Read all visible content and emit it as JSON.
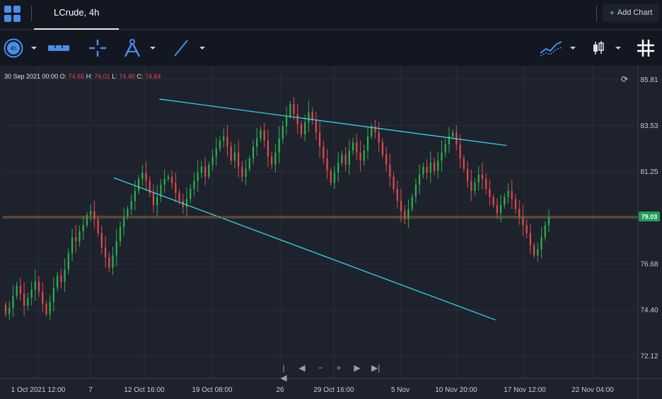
{
  "topbar": {
    "tab_label": "LCrude, 4h",
    "add_chart_label": "Add Chart",
    "add_chart_plus": "+"
  },
  "toolbar": {
    "timeframe_badge": "4h",
    "icons": [
      "timeframe-icon",
      "ruler-icon",
      "crosshair-icon",
      "compass-icon",
      "trendline-icon",
      "indicators-icon",
      "candle-type-icon",
      "grid-icon"
    ]
  },
  "ohlc_header": {
    "date": "30 Sep 2021 00:00",
    "o_label": "O:",
    "o_value": "74.65",
    "h_label": "H:",
    "h_value": "76.01",
    "l_label": "L:",
    "l_value": "74.40",
    "c_label": "C:",
    "c_value": "74.64"
  },
  "nav_controls": [
    "|◀",
    "◀",
    "−",
    "+",
    "▶",
    "▶|"
  ],
  "colors": {
    "up": "#2bb24c",
    "down": "#e34b4b",
    "trendline": "#33d4e6",
    "price_line": "#d44a3a",
    "price_badge": "#1f9d55",
    "background": "#1e222d"
  },
  "chart_data": {
    "type": "candlestick",
    "symbol": "LCrude",
    "interval": "4h",
    "y_ticks": [
      "85.81",
      "83.53",
      "81.25",
      "76.68",
      "74.40",
      "72.12"
    ],
    "x_ticks": [
      "1 Oct 2021 12:00",
      "7",
      "12 Oct 16:00",
      "19 Oct 08:00",
      "26",
      "29 Oct 16:00",
      "5 Nov",
      "10 Nov 20:00",
      "17 Nov 12:00",
      "22 Nov 04:00"
    ],
    "ylim": [
      71.0,
      86.5
    ],
    "current_price": "79.03",
    "grid": true,
    "trendlines": [
      {
        "name": "upper",
        "start": [
          28.3,
          84.85
        ],
        "end": [
          92.2,
          82.55
        ]
      },
      {
        "name": "lower",
        "start": [
          19.9,
          80.95
        ],
        "end": [
          90.2,
          73.9
        ]
      }
    ],
    "closes": [
      74.2,
      74.5,
      75.1,
      75.6,
      75.2,
      74.6,
      75.0,
      75.4,
      75.8,
      75.3,
      74.7,
      74.2,
      74.8,
      75.5,
      76.1,
      75.8,
      76.4,
      77.2,
      78.0,
      77.8,
      78.3,
      78.6,
      79.1,
      79.3,
      78.9,
      78.2,
      77.5,
      77.0,
      76.5,
      77.1,
      77.8,
      78.5,
      79.0,
      79.4,
      79.8,
      80.3,
      80.9,
      81.2,
      80.8,
      80.2,
      79.6,
      80.0,
      80.6,
      80.9,
      81.0,
      80.7,
      80.2,
      79.8,
      79.5,
      79.9,
      80.4,
      80.8,
      81.2,
      81.5,
      81.0,
      81.6,
      82.0,
      82.4,
      82.8,
      83.0,
      82.5,
      81.8,
      82.2,
      81.5,
      81.0,
      81.4,
      81.9,
      82.5,
      82.9,
      83.3,
      82.8,
      82.0,
      81.6,
      82.2,
      82.9,
      83.5,
      84.0,
      84.6,
      84.1,
      83.6,
      83.1,
      83.7,
      84.2,
      83.8,
      83.2,
      82.5,
      81.9,
      81.3,
      80.7,
      81.2,
      81.7,
      82.1,
      81.6,
      82.3,
      82.7,
      82.2,
      81.8,
      82.3,
      83.0,
      83.5,
      83.2,
      82.7,
      82.1,
      81.6,
      81.0,
      80.4,
      79.8,
      79.3,
      78.9,
      79.4,
      80.0,
      80.6,
      81.1,
      81.5,
      81.2,
      81.7,
      81.3,
      81.8,
      82.2,
      82.6,
      83.0,
      83.2,
      82.6,
      81.9,
      81.4,
      80.8,
      80.3,
      80.7,
      81.1,
      80.9,
      80.4,
      80.0,
      79.6,
      79.2,
      79.6,
      80.0,
      80.3,
      79.9,
      79.4,
      79.0,
      78.6,
      78.2,
      77.6,
      77.1,
      77.4,
      78.0,
      78.6,
      79.0
    ]
  }
}
